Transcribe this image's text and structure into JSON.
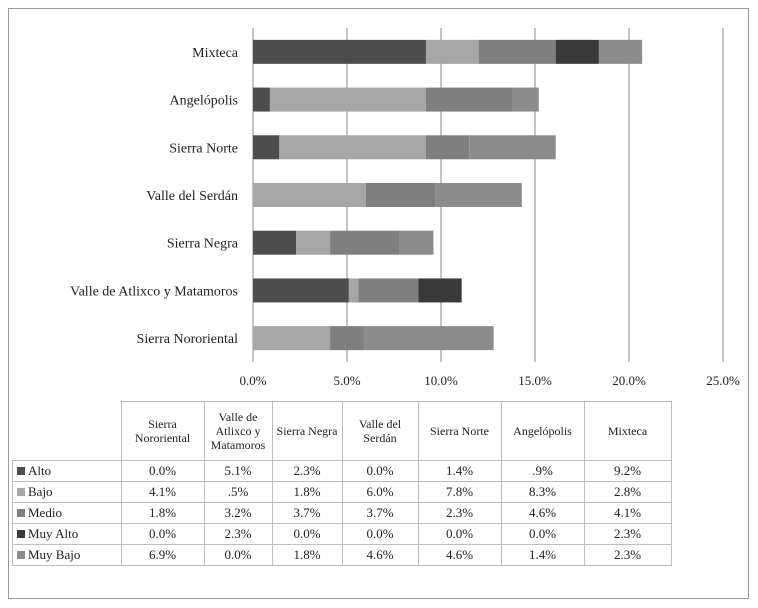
{
  "chart_data": {
    "type": "bar",
    "orientation": "horizontal",
    "stacked": true,
    "categories": [
      "Mixteca",
      "Angelópolis",
      "Sierra Norte",
      "Valle del Serdán",
      "Sierra Negra",
      "Valle de Atlixco y Matamoros",
      "Sierra Nororiental"
    ],
    "series": [
      {
        "name": "Alto",
        "color": "#4d4d4d",
        "values": [
          9.2,
          0.9,
          1.4,
          0.0,
          2.3,
          5.1,
          0.0
        ]
      },
      {
        "name": "Bajo",
        "color": "#a6a6a6",
        "values": [
          2.8,
          8.3,
          7.8,
          6.0,
          1.8,
          0.5,
          4.1
        ]
      },
      {
        "name": "Medio",
        "color": "#7f7f7f",
        "values": [
          4.1,
          4.6,
          2.3,
          3.7,
          3.7,
          3.2,
          1.8
        ]
      },
      {
        "name": "Muy Alto",
        "color": "#3a3a3a",
        "values": [
          2.3,
          0.0,
          0.0,
          0.0,
          0.0,
          2.3,
          0.0
        ]
      },
      {
        "name": "Muy Bajo",
        "color": "#8c8c8c",
        "values": [
          2.3,
          1.4,
          4.6,
          4.6,
          1.8,
          0.0,
          6.9
        ]
      }
    ],
    "xlim": [
      0,
      25
    ],
    "xticks": [
      "0.0%",
      "5.0%",
      "10.0%",
      "15.0%",
      "20.0%",
      "25.0%"
    ],
    "grid": true,
    "legend": "data table below chart"
  },
  "table": {
    "headers": [
      "Sierra Nororiental",
      "Valle de Atlixco y Matamoros",
      "Sierra Negra",
      "Valle del Serdán",
      "Sierra Norte",
      "Angelópolis",
      "Mixteca"
    ],
    "rows": [
      {
        "label": "Alto",
        "color": "#4d4d4d",
        "cells": [
          "0.0%",
          "5.1%",
          "2.3%",
          "0.0%",
          "1.4%",
          ".9%",
          "9.2%"
        ]
      },
      {
        "label": "Bajo",
        "color": "#a6a6a6",
        "cells": [
          "4.1%",
          ".5%",
          "1.8%",
          "6.0%",
          "7.8%",
          "8.3%",
          "2.8%"
        ]
      },
      {
        "label": "Medio",
        "color": "#7f7f7f",
        "cells": [
          "1.8%",
          "3.2%",
          "3.7%",
          "3.7%",
          "2.3%",
          "4.6%",
          "4.1%"
        ]
      },
      {
        "label": "Muy Alto",
        "color": "#3a3a3a",
        "cells": [
          "0.0%",
          "2.3%",
          "0.0%",
          "0.0%",
          "0.0%",
          "0.0%",
          "2.3%"
        ]
      },
      {
        "label": "Muy Bajo",
        "color": "#8c8c8c",
        "cells": [
          "6.9%",
          "0.0%",
          "1.8%",
          "4.6%",
          "4.6%",
          "1.4%",
          "2.3%"
        ]
      }
    ]
  }
}
